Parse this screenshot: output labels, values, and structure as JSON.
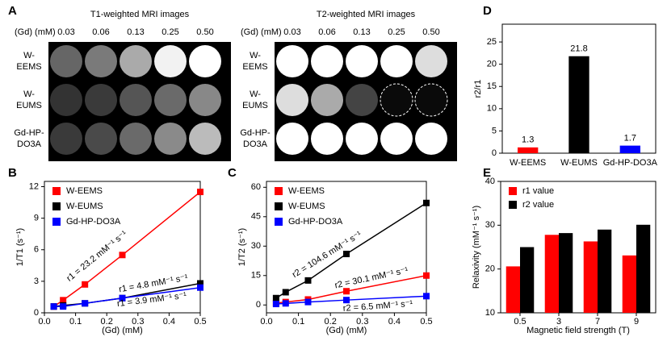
{
  "images": {
    "panel_label": "A",
    "unit_label": "(Gd) (mM)",
    "concentrations": [
      "0.03",
      "0.06",
      "0.13",
      "0.25",
      "0.50"
    ],
    "samples": [
      [
        "W-",
        "EEMS"
      ],
      [
        "W-",
        "EUMS"
      ],
      [
        "Gd-HP-",
        "DO3A"
      ]
    ],
    "groups": [
      {
        "title": "T1-weighted MRI images"
      },
      {
        "title": "T2-weighted MRI images"
      }
    ]
  },
  "chart_data": [
    {
      "type": "line",
      "panel_label": "B",
      "xlabel": "(Gd) (mM)",
      "ylabel": "1/T1 (s⁻¹)",
      "xlim": [
        0,
        0.5
      ],
      "xticks": [
        {
          "value": 0,
          "label": "0.0"
        },
        0.1,
        0.2,
        0.3,
        0.4,
        0.5
      ],
      "ylim": [
        0,
        12.5
      ],
      "yticks": [
        0,
        3,
        6,
        9,
        12
      ],
      "legend": "upper left",
      "x": [
        0.03,
        0.06,
        0.13,
        0.25,
        0.5
      ],
      "series": [
        {
          "name": "W-EEMS",
          "color": "#ff0000",
          "values": [
            0.6,
            1.2,
            2.7,
            5.5,
            11.5
          ]
        },
        {
          "name": "W-EUMS",
          "color": "#000000",
          "values": [
            0.6,
            0.7,
            0.9,
            1.4,
            2.8
          ]
        },
        {
          "name": "Gd-HP-DO3A",
          "color": "#0000ff",
          "values": [
            0.6,
            0.6,
            0.9,
            1.4,
            2.4
          ]
        }
      ],
      "annotations": [
        {
          "text": "r1 = 23.2 mM⁻¹ s⁻¹",
          "color": "#ff0000"
        },
        {
          "text": "r1 = 4.8 mM⁻¹ s⁻¹",
          "color": "#000000"
        },
        {
          "text": "r1 = 3.9 mM⁻¹ s⁻¹",
          "color": "#0000ff"
        }
      ]
    },
    {
      "type": "line",
      "panel_label": "C",
      "xlabel": "(Gd) (mM)",
      "ylabel": "1/T2 (s⁻¹)",
      "xlim": [
        0,
        0.5
      ],
      "xticks": [
        {
          "value": 0,
          "label": "0.0"
        },
        0.1,
        0.2,
        0.3,
        0.4,
        0.5
      ],
      "ylim": [
        -4,
        63
      ],
      "yticks": [
        0,
        15,
        30,
        45,
        60
      ],
      "legend": "upper left",
      "x": [
        0.03,
        0.06,
        0.13,
        0.25,
        0.5
      ],
      "series": [
        {
          "name": "W-EEMS",
          "color": "#ff0000",
          "values": [
            1,
            1.5,
            2.8,
            7,
            15
          ]
        },
        {
          "name": "W-EUMS",
          "color": "#000000",
          "values": [
            3.5,
            6.5,
            12.5,
            26,
            52
          ]
        },
        {
          "name": "Gd-HP-DO3A",
          "color": "#0000ff",
          "values": [
            0.5,
            0.8,
            1.5,
            2.5,
            4.5
          ]
        }
      ],
      "annotations": [
        {
          "text": "r2 = 104.6 mM⁻¹ s⁻¹",
          "color": "#000000"
        },
        {
          "text": "r2 = 30.1 mM⁻¹ s⁻¹",
          "color": "#ff0000"
        },
        {
          "text": "r2 = 6.5 mM⁻¹ s⁻¹",
          "color": "#0000ff"
        }
      ]
    },
    {
      "type": "bar",
      "panel_label": "D",
      "ylabel": "r2/r1",
      "categories": [
        "W-EEMS",
        "W-EUMS",
        "Gd-HP-DO3A"
      ],
      "values": [
        1.3,
        21.8,
        1.7
      ],
      "colors": [
        "#ff0000",
        "#000000",
        "#0000ff"
      ],
      "ylim": [
        0,
        29
      ],
      "yticks": [
        0,
        5,
        10,
        15,
        20,
        25
      ]
    },
    {
      "type": "grouped_bar",
      "panel_label": "E",
      "xlabel": "Magnetic field strength (T)",
      "ylabel": "Relaxivity (mM⁻¹ s⁻¹)",
      "categories": [
        "0.5",
        "3",
        "7",
        "9"
      ],
      "legend": "upper left",
      "ylim": [
        10,
        40
      ],
      "yticks": [
        10,
        20,
        30,
        40
      ],
      "series": [
        {
          "name": "r1 value",
          "color": "#ff0000",
          "values": [
            20.6,
            27.8,
            26.3,
            23.1
          ]
        },
        {
          "name": "r2 value",
          "color": "#000000",
          "values": [
            25,
            28.2,
            29,
            30.1
          ]
        }
      ]
    }
  ]
}
